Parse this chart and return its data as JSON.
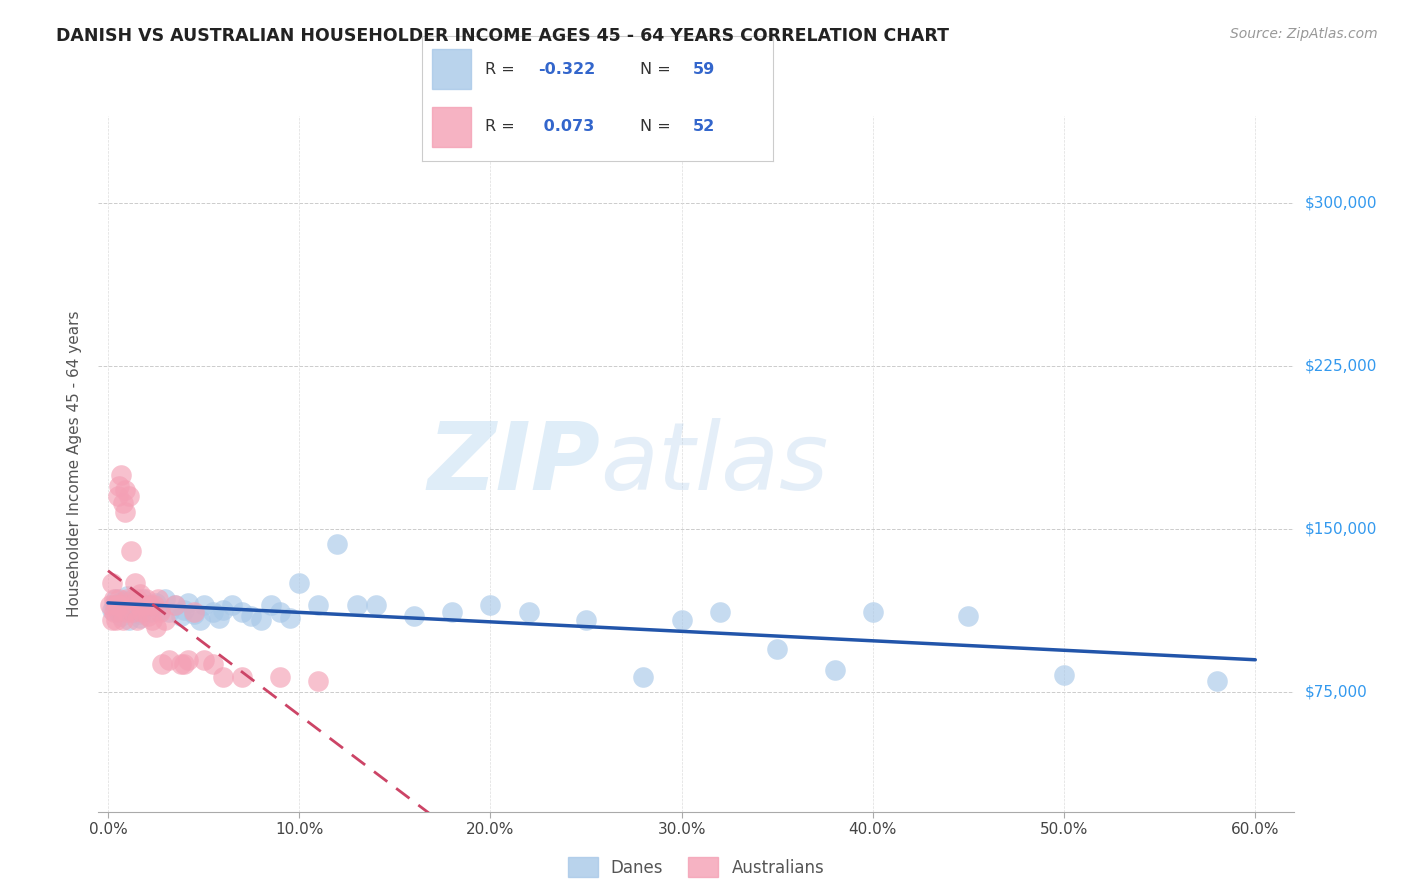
{
  "title": "DANISH VS AUSTRALIAN HOUSEHOLDER INCOME AGES 45 - 64 YEARS CORRELATION CHART",
  "source": "Source: ZipAtlas.com",
  "ylabel": "Householder Income Ages 45 - 64 years",
  "xlim": [
    -0.005,
    0.62
  ],
  "ylim": [
    20000,
    340000
  ],
  "xtick_labels": [
    "0.0%",
    "10.0%",
    "20.0%",
    "30.0%",
    "40.0%",
    "50.0%",
    "60.0%"
  ],
  "xtick_vals": [
    0.0,
    0.1,
    0.2,
    0.3,
    0.4,
    0.5,
    0.6
  ],
  "ytick_labels": [
    "$75,000",
    "$150,000",
    "$225,000",
    "$300,000"
  ],
  "ytick_vals": [
    75000,
    150000,
    225000,
    300000
  ],
  "danes_color": "#A8C8E8",
  "australians_color": "#F4A0B5",
  "danes_line_color": "#2255AA",
  "australians_line_color": "#CC4466",
  "danes_R": -0.322,
  "danes_N": 59,
  "australians_R": 0.073,
  "australians_N": 52,
  "legend_label_danes": "Danes",
  "legend_label_australians": "Australians",
  "watermark_zip": "ZIP",
  "watermark_atlas": "atlas",
  "danes_x": [
    0.002,
    0.003,
    0.004,
    0.005,
    0.006,
    0.007,
    0.008,
    0.009,
    0.01,
    0.011,
    0.012,
    0.013,
    0.014,
    0.015,
    0.016,
    0.017,
    0.018,
    0.02,
    0.022,
    0.025,
    0.027,
    0.03,
    0.032,
    0.035,
    0.038,
    0.04,
    0.042,
    0.045,
    0.048,
    0.05,
    0.055,
    0.058,
    0.06,
    0.065,
    0.07,
    0.075,
    0.08,
    0.085,
    0.09,
    0.095,
    0.1,
    0.11,
    0.12,
    0.13,
    0.14,
    0.16,
    0.18,
    0.2,
    0.22,
    0.25,
    0.28,
    0.3,
    0.32,
    0.35,
    0.38,
    0.4,
    0.45,
    0.5,
    0.58
  ],
  "danes_y": [
    113000,
    115000,
    118000,
    112000,
    116000,
    110000,
    114000,
    117000,
    119000,
    108000,
    115000,
    112000,
    113000,
    116000,
    111000,
    109000,
    118000,
    115000,
    112000,
    116000,
    113000,
    118000,
    112000,
    115000,
    110000,
    113000,
    116000,
    111000,
    108000,
    115000,
    112000,
    109000,
    113000,
    115000,
    112000,
    110000,
    108000,
    115000,
    112000,
    109000,
    125000,
    115000,
    143000,
    115000,
    115000,
    110000,
    112000,
    115000,
    112000,
    108000,
    82000,
    108000,
    112000,
    95000,
    85000,
    112000,
    110000,
    83000,
    80000
  ],
  "australians_x": [
    0.001,
    0.002,
    0.002,
    0.003,
    0.003,
    0.004,
    0.004,
    0.005,
    0.005,
    0.006,
    0.006,
    0.007,
    0.007,
    0.008,
    0.008,
    0.009,
    0.009,
    0.01,
    0.01,
    0.011,
    0.012,
    0.013,
    0.013,
    0.014,
    0.015,
    0.015,
    0.016,
    0.017,
    0.018,
    0.019,
    0.02,
    0.021,
    0.022,
    0.023,
    0.024,
    0.025,
    0.026,
    0.027,
    0.028,
    0.03,
    0.032,
    0.035,
    0.038,
    0.04,
    0.042,
    0.045,
    0.05,
    0.055,
    0.06,
    0.07,
    0.09,
    0.11
  ],
  "australians_y": [
    115000,
    125000,
    108000,
    118000,
    112000,
    115000,
    108000,
    165000,
    115000,
    170000,
    118000,
    175000,
    115000,
    162000,
    108000,
    168000,
    158000,
    118000,
    112000,
    165000,
    140000,
    118000,
    112000,
    125000,
    108000,
    118000,
    115000,
    120000,
    112000,
    115000,
    118000,
    110000,
    115000,
    108000,
    115000,
    105000,
    118000,
    112000,
    88000,
    108000,
    90000,
    115000,
    88000,
    88000,
    90000,
    112000,
    90000,
    88000,
    82000,
    82000,
    82000,
    80000
  ]
}
